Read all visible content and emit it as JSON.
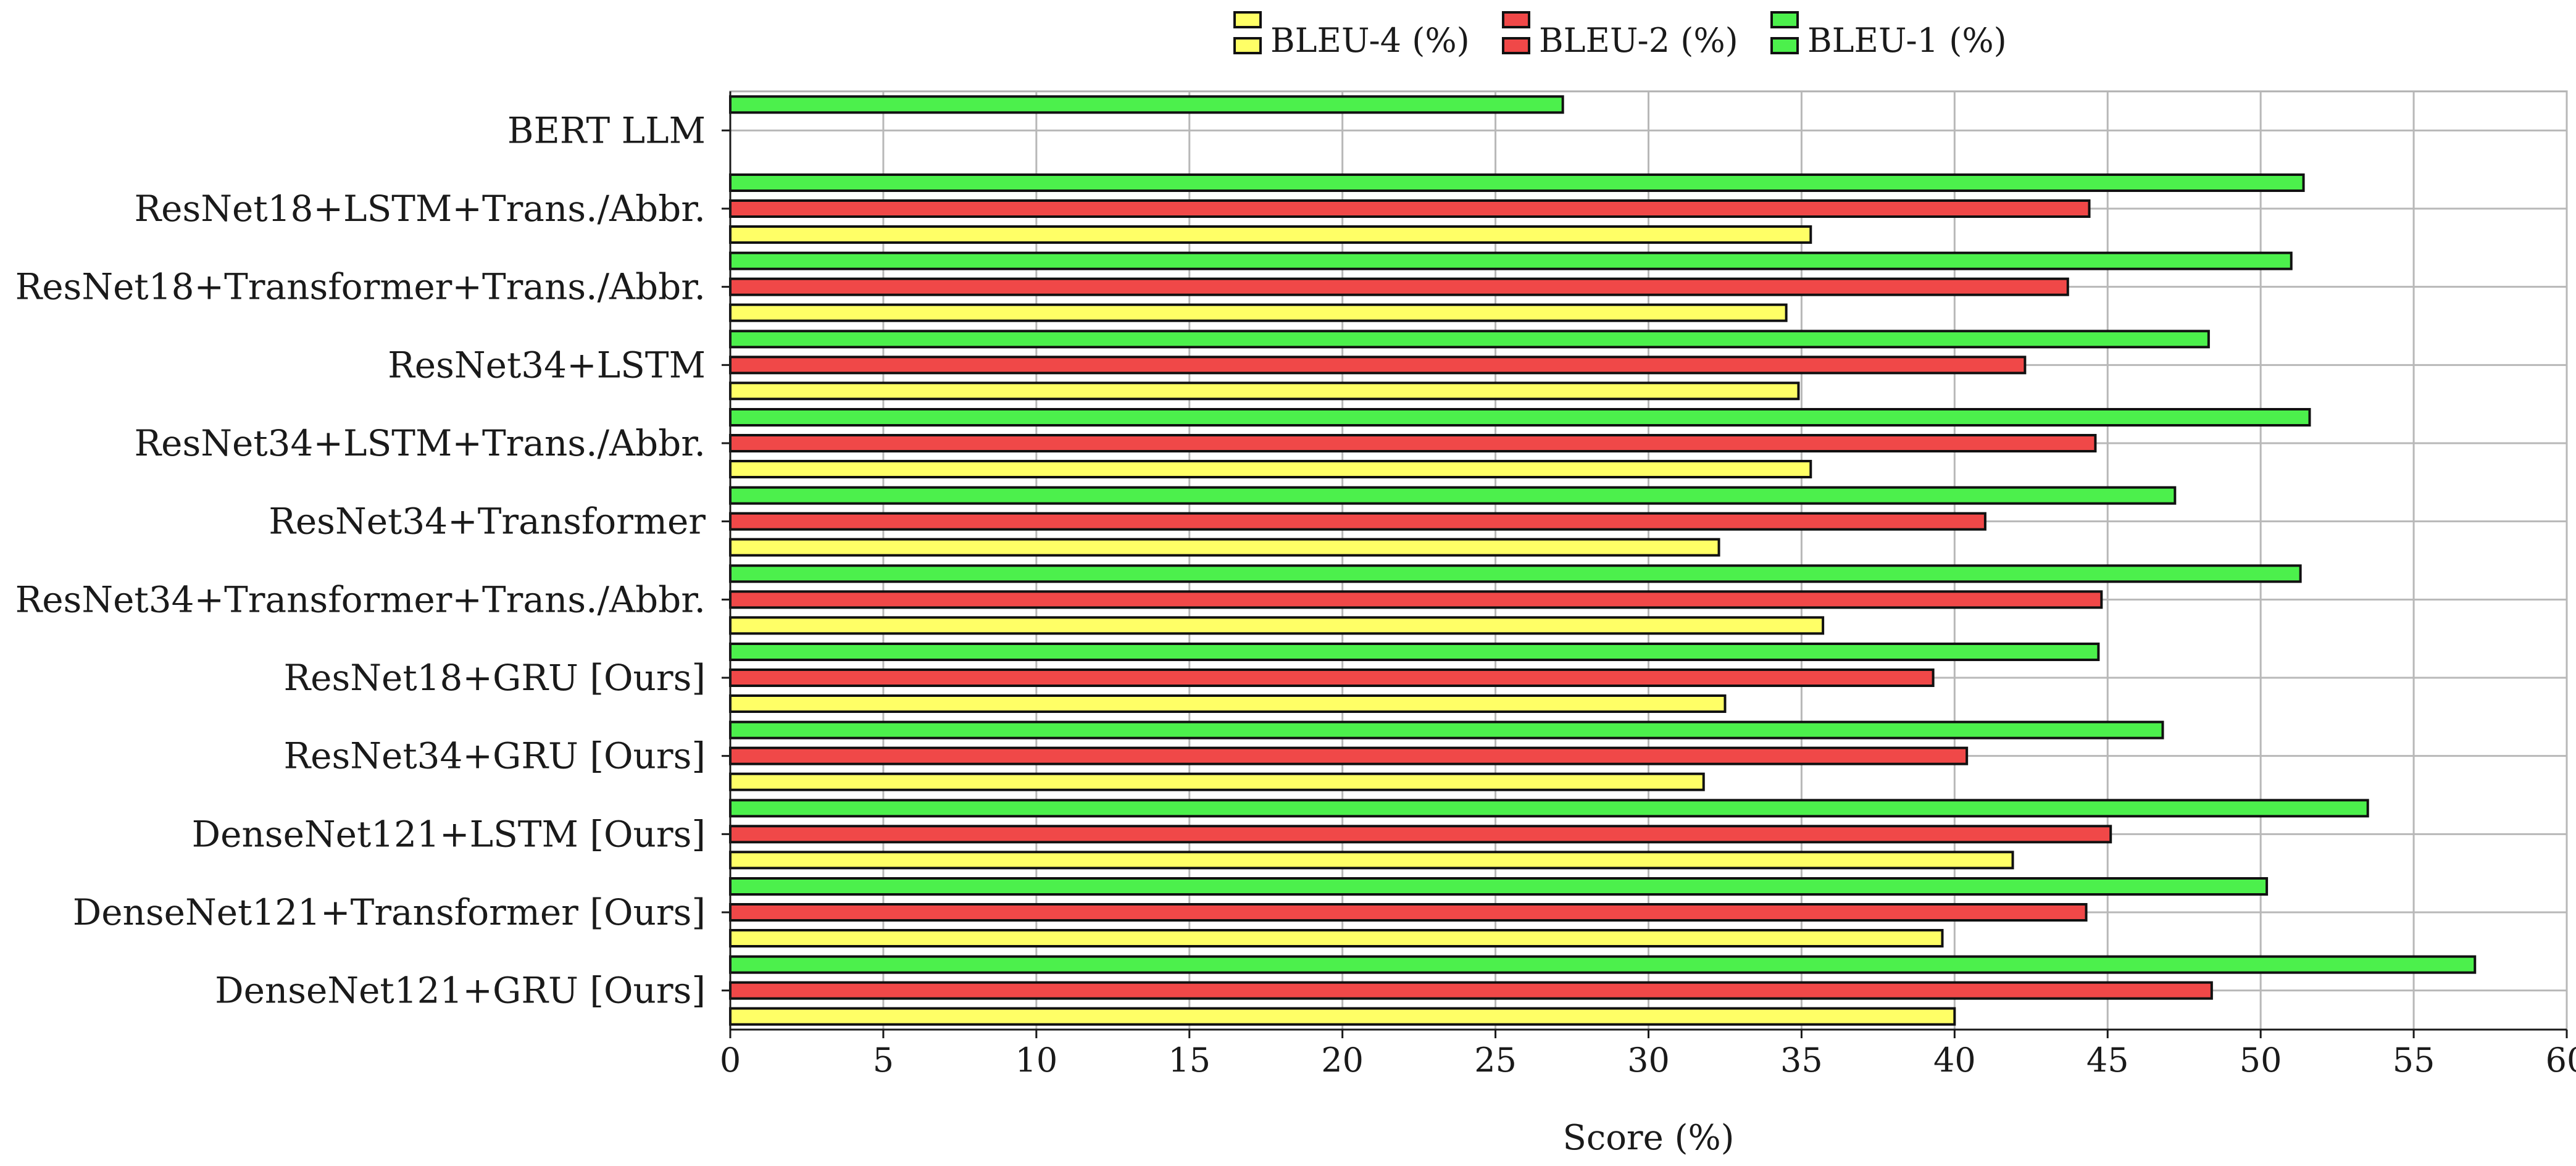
{
  "chart_data": {
    "type": "bar",
    "orientation": "horizontal",
    "xlabel": "Score (%)",
    "ylabel": "",
    "xlim": [
      0,
      60
    ],
    "xticks": [
      0,
      5,
      10,
      15,
      20,
      25,
      30,
      35,
      40,
      45,
      50,
      55,
      60
    ],
    "grid": true,
    "legend_position": "top",
    "categories": [
      "BERT LLM",
      "ResNet18+LSTM+Trans./Abbr.",
      "ResNet18+Transformer+Trans./Abbr.",
      "ResNet34+LSTM",
      "ResNet34+LSTM+Trans./Abbr.",
      "ResNet34+Transformer",
      "ResNet34+Transformer+Trans./Abbr.",
      "ResNet18+GRU [Ours]",
      "ResNet34+GRU [Ours]",
      "DenseNet121+LSTM [Ours]",
      "DenseNet121+Transformer [Ours]",
      "DenseNet121+GRU [Ours]"
    ],
    "series": [
      {
        "name": "BLEU-4 (%)",
        "color": "#ffff66",
        "values": [
          0,
          35.3,
          34.5,
          34.9,
          35.3,
          32.3,
          35.7,
          32.5,
          31.8,
          41.9,
          39.6,
          40.0
        ]
      },
      {
        "name": "BLEU-2 (%)",
        "color": "#f04848",
        "values": [
          0,
          44.4,
          43.7,
          42.3,
          44.6,
          41.0,
          44.8,
          39.3,
          40.4,
          45.1,
          44.3,
          48.4
        ]
      },
      {
        "name": "BLEU-1 (%)",
        "color": "#4cf04c",
        "values": [
          27.2,
          51.4,
          51.0,
          48.3,
          51.6,
          47.2,
          51.3,
          44.7,
          46.8,
          53.5,
          50.2,
          57.0
        ]
      }
    ]
  }
}
